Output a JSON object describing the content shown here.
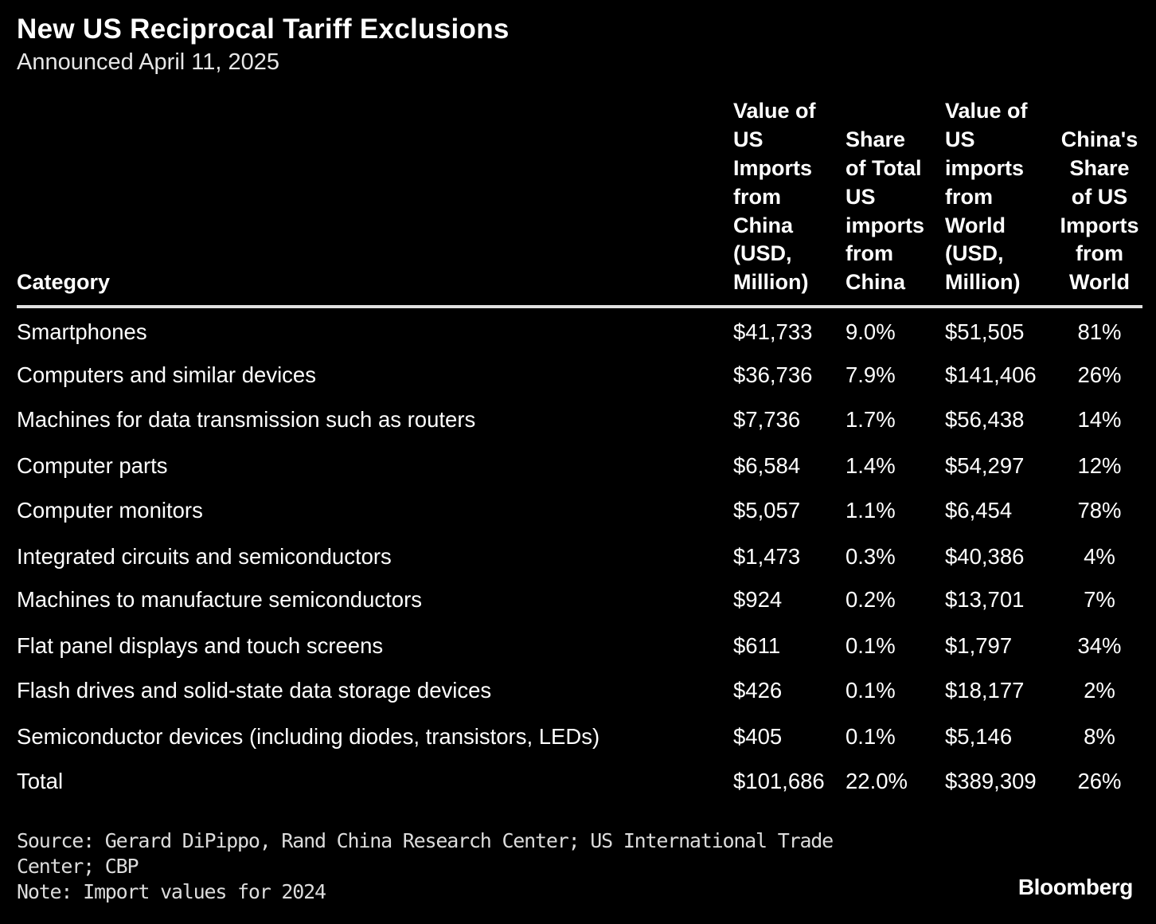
{
  "title": "New US Reciprocal Tariff Exclusions",
  "subtitle": "Announced April 11, 2025",
  "colors": {
    "background": "#000000",
    "text": "#ffffff",
    "rule": "#e0e0e0",
    "footer_text": "#dcdcdc"
  },
  "chart_data": {
    "type": "table",
    "title": "New US Reciprocal Tariff Exclusions",
    "subtitle": "Announced April 11, 2025",
    "columns": [
      "Category",
      "Value of US Imports from China (USD, Million)",
      "Share of Total US imports from China",
      "Value of US imports from World (USD, Million)",
      "China's Share of US Imports from World"
    ],
    "rows": [
      [
        "Smartphones",
        "$41,733",
        "9.0%",
        "$51,505",
        "81%"
      ],
      [
        "Computers and similar devices",
        "$36,736",
        "7.9%",
        "$141,406",
        "26%"
      ],
      [
        "Machines for data transmission such as routers",
        "$7,736",
        "1.7%",
        "$56,438",
        "14%"
      ],
      [
        "Computer parts",
        "$6,584",
        "1.4%",
        "$54,297",
        "12%"
      ],
      [
        "Computer monitors",
        "$5,057",
        "1.1%",
        "$6,454",
        "78%"
      ],
      [
        "Integrated circuits and semiconductors",
        "$1,473",
        "0.3%",
        "$40,386",
        "4%"
      ],
      [
        "Machines to manufacture semiconductors",
        "$924",
        "0.2%",
        "$13,701",
        "7%"
      ],
      [
        "Flat panel displays and touch screens",
        "$611",
        "0.1%",
        "$1,797",
        "34%"
      ],
      [
        "Flash drives and solid-state data storage devices",
        "$426",
        "0.1%",
        "$18,177",
        "2%"
      ],
      [
        "Semiconductor devices (including diodes, transistors, LEDs)",
        "$405",
        "0.1%",
        "$5,146",
        "8%"
      ],
      [
        "Total",
        "$101,686",
        "22.0%",
        "$389,309",
        "26%"
      ]
    ]
  },
  "footer": {
    "source": "Source: Gerard DiPippo, Rand China Research Center; US International Trade Center; CBP",
    "note": "Note: Import values for 2024"
  },
  "brand": "Bloomberg"
}
